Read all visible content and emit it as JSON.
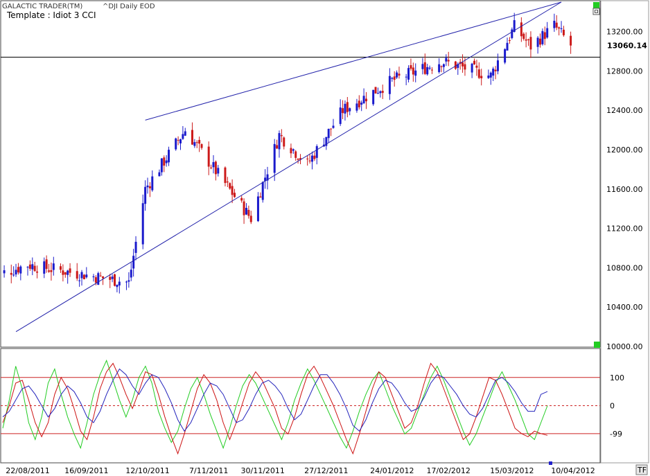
{
  "header": {
    "app_title": "GALACTIC TRADER(TM)",
    "symbol": "^DJI Daily EOD",
    "template": "Template : Idiot 3 CCI",
    "tf_button": "TF"
  },
  "colors": {
    "bull": "#1a1acc",
    "bear": "#cc1a1a",
    "trend": "#2222aa",
    "cci_green": "#22cc22",
    "cci_red": "#cc1111",
    "cci_blue": "#2222bb",
    "ref_red": "#cc2222",
    "marker_green": "#22cc22"
  },
  "chart_data": [
    {
      "type": "candlestick",
      "name": "price",
      "ylim": [
        10000,
        13500
      ],
      "y_ticks": [
        "13200.00",
        "12800.00",
        "12400.00",
        "12000.00",
        "11600.00",
        "11200.00",
        "10800.00",
        "10400.00",
        "10000.00"
      ],
      "y_tick_values": [
        13200,
        12800,
        12400,
        12000,
        11600,
        11200,
        10800,
        10400,
        10000
      ],
      "last_price_label": "13060.14",
      "last_price": 13060.14,
      "horizontal_line": 12940,
      "x_ticks": [
        "22/08/2011",
        "16/09/2011",
        "12/10/2011",
        "7/11/2011",
        "30/11/2011",
        "27/12/2011",
        "24/01/2012",
        "17/02/2012",
        "15/03/2012",
        "10/04/2012"
      ],
      "trendlines": [
        {
          "from": [
            "11/10/2011",
            12300
          ],
          "to": [
            "05/04/2012",
            13500
          ]
        },
        {
          "from": [
            "17/08/2011",
            10150
          ],
          "to": [
            "05/04/2012",
            13500
          ]
        }
      ],
      "anchors": [
        {
          "date": "22/08/2011",
          "close": 10830
        },
        {
          "date": "04/10/2011",
          "close": 10650
        },
        {
          "date": "11/10/2011",
          "close": 11600
        },
        {
          "date": "28/10/2011",
          "close": 12200
        },
        {
          "date": "25/11/2011",
          "close": 11300
        },
        {
          "date": "07/12/2011",
          "close": 12150
        },
        {
          "date": "19/12/2011",
          "close": 11850
        },
        {
          "date": "03/01/2012",
          "close": 12400
        },
        {
          "date": "24/01/2012",
          "close": 12700
        },
        {
          "date": "14/02/2012",
          "close": 12900
        },
        {
          "date": "06/03/2012",
          "close": 12750
        },
        {
          "date": "16/03/2012",
          "close": 13250
        },
        {
          "date": "23/03/2012",
          "close": 13050
        },
        {
          "date": "02/04/2012",
          "close": 13260
        },
        {
          "date": "09/04/2012",
          "close": 13060
        }
      ]
    },
    {
      "type": "line",
      "name": "cci",
      "ylim": [
        -200,
        200
      ],
      "y_ticks": [
        "100",
        "0",
        "-99"
      ],
      "y_tick_values": [
        100,
        0,
        -99
      ],
      "reference_lines": [
        100,
        0,
        -99
      ],
      "series": [
        {
          "color": "#22cc22",
          "values": [
            -80,
            20,
            140,
            60,
            -60,
            -120,
            -40,
            80,
            130,
            40,
            -40,
            -100,
            -150,
            -60,
            40,
            110,
            160,
            90,
            20,
            -40,
            20,
            100,
            140,
            80,
            -20,
            -80,
            -130,
            -90,
            -10,
            60,
            100,
            40,
            -30,
            -90,
            -150,
            -80,
            0,
            70,
            110,
            80,
            30,
            -20,
            -70,
            -120,
            -60,
            20,
            80,
            130,
            90,
            40,
            -10,
            -60,
            -110,
            -150,
            -90,
            -20,
            40,
            90,
            120,
            60,
            0,
            -50,
            -100,
            -80,
            -20,
            40,
            100,
            140,
            90,
            30,
            -30,
            -90,
            -140,
            -100,
            -40,
            20,
            80,
            120,
            70,
            20,
            -40,
            -100,
            -120,
            -60,
            0
          ]
        },
        {
          "color": "#cc1111",
          "values": [
            -60,
            0,
            80,
            90,
            20,
            -60,
            -110,
            -60,
            40,
            100,
            60,
            -10,
            -90,
            -120,
            -40,
            60,
            120,
            150,
            100,
            40,
            -10,
            50,
            120,
            110,
            40,
            -40,
            -110,
            -170,
            -100,
            -20,
            60,
            110,
            80,
            20,
            -60,
            -120,
            -60,
            10,
            80,
            120,
            90,
            40,
            -10,
            -80,
            -100,
            -40,
            40,
            110,
            140,
            100,
            50,
            0,
            -60,
            -120,
            -170,
            -100,
            -20,
            60,
            120,
            100,
            40,
            -20,
            -80,
            -60,
            0,
            80,
            150,
            120,
            60,
            0,
            -60,
            -120,
            -100,
            -40,
            30,
            100,
            90,
            40,
            -20,
            -80,
            -99,
            -110,
            -90,
            -99,
            -105
          ]
        },
        {
          "color": "#2222bb",
          "values": [
            -40,
            -20,
            20,
            60,
            70,
            40,
            0,
            -40,
            -10,
            40,
            70,
            50,
            10,
            -40,
            -60,
            -20,
            40,
            90,
            130,
            110,
            70,
            40,
            80,
            110,
            100,
            60,
            10,
            -50,
            -90,
            -60,
            -10,
            40,
            80,
            70,
            40,
            -10,
            -60,
            -50,
            -10,
            40,
            80,
            90,
            70,
            40,
            -10,
            -50,
            -30,
            20,
            70,
            110,
            110,
            80,
            40,
            -10,
            -70,
            -90,
            -50,
            10,
            60,
            90,
            80,
            50,
            10,
            -20,
            -10,
            30,
            80,
            110,
            100,
            70,
            40,
            0,
            -30,
            -40,
            -10,
            40,
            90,
            100,
            80,
            50,
            10,
            -20,
            -20,
            40,
            50
          ]
        }
      ]
    }
  ]
}
